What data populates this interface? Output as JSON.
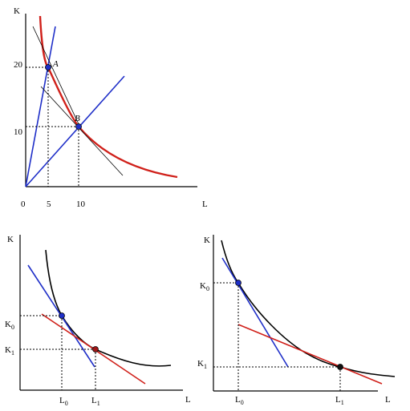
{
  "colors": {
    "axis": "#000000",
    "isoquant_red": "#d0201a",
    "ray_blue": "#1f2fc8",
    "black_curve": "#000000",
    "guide": "#000000"
  },
  "top": {
    "y_axis": "K",
    "x_axis": "L",
    "origin": "0",
    "y_ticks": [
      "20",
      "10"
    ],
    "x_ticks": [
      "5",
      "10"
    ],
    "points": [
      "A",
      "B"
    ]
  },
  "bottom_left": {
    "y_axis": "K",
    "x_axis": "L",
    "k0": "K",
    "k0_sub": "0",
    "k1": "K",
    "k1_sub": "1",
    "l0": "L",
    "l0_sub": "0",
    "l1": "L",
    "l1_sub": "1"
  },
  "bottom_right": {
    "y_axis": "K",
    "x_axis": "L",
    "k0": "K",
    "k0_sub": "0",
    "k1": "K",
    "k1_sub": "1",
    "l0": "L",
    "l0_sub": "0",
    "l1": "L",
    "l1_sub": "1"
  }
}
